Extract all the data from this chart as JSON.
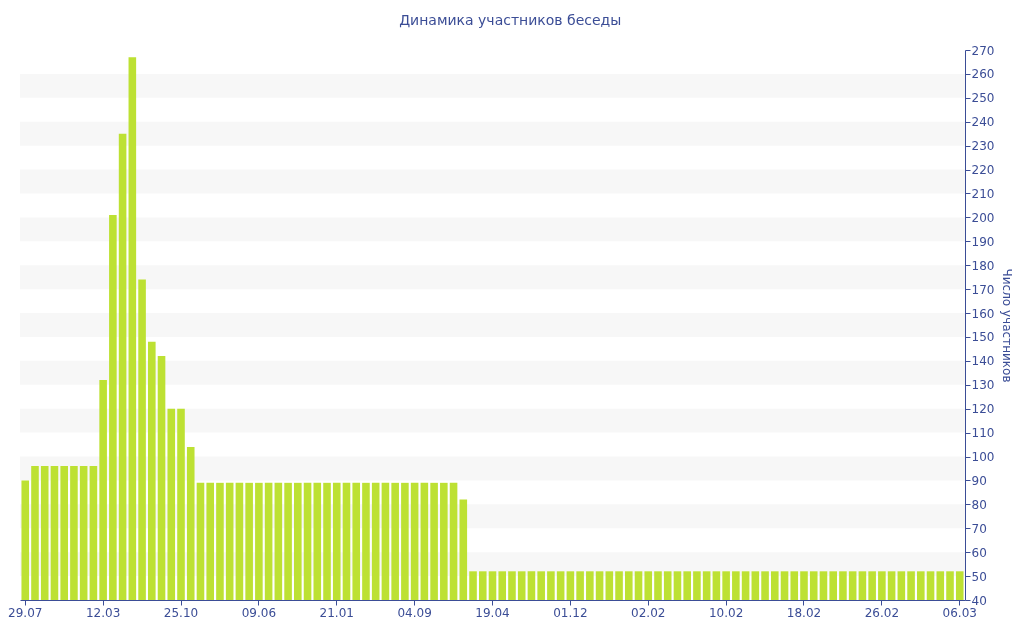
{
  "chart_data": {
    "type": "bar",
    "title": "Динамика участников беседы",
    "ylabel": "Число участников",
    "categories": [
      "29.07",
      null,
      null,
      null,
      null,
      null,
      null,
      null,
      "12.03",
      null,
      null,
      null,
      null,
      null,
      null,
      null,
      "25.10",
      null,
      null,
      null,
      null,
      null,
      null,
      null,
      "09.06",
      null,
      null,
      null,
      null,
      null,
      null,
      null,
      "21.01",
      null,
      null,
      null,
      null,
      null,
      null,
      null,
      "04.09",
      null,
      null,
      null,
      null,
      null,
      null,
      null,
      "19.04",
      null,
      null,
      null,
      null,
      null,
      null,
      null,
      "01.12",
      null,
      null,
      null,
      null,
      null,
      null,
      null,
      "02.02",
      null,
      null,
      null,
      null,
      null,
      null,
      null,
      "10.02",
      null,
      null,
      null,
      null,
      null,
      null,
      null,
      "18.02",
      null,
      null,
      null,
      null,
      null,
      null,
      null,
      "26.02",
      null,
      null,
      null,
      null,
      null,
      null,
      null,
      "06.03"
    ],
    "values": [
      90,
      96,
      96,
      96,
      96,
      96,
      96,
      96,
      132,
      201,
      235,
      267,
      174,
      148,
      142,
      120,
      120,
      104,
      89,
      89,
      89,
      89,
      89,
      89,
      89,
      89,
      89,
      89,
      89,
      89,
      89,
      89,
      89,
      89,
      89,
      89,
      89,
      89,
      89,
      89,
      89,
      89,
      89,
      89,
      89,
      82,
      52,
      52,
      52,
      52,
      52,
      52,
      52,
      52,
      52,
      52,
      52,
      52,
      52,
      52,
      52,
      52,
      52,
      52,
      52,
      52,
      52,
      52,
      52,
      52,
      52,
      52,
      52,
      52,
      52,
      52,
      52,
      52,
      52,
      52,
      52,
      52,
      52,
      52,
      52,
      52,
      52,
      52,
      52,
      52,
      52,
      52,
      52,
      52,
      52,
      52,
      52
    ],
    "color": "#bde133",
    "ylim": [
      40,
      270
    ],
    "yticks": [
      40,
      50,
      60,
      70,
      80,
      90,
      100,
      110,
      120,
      130,
      140,
      150,
      160,
      170,
      180,
      190,
      200,
      210,
      220,
      230,
      240,
      250,
      260,
      270
    ],
    "bands": [
      {
        "axis": "y",
        "from": 50,
        "to": 60,
        "color": "#f7f7f7"
      },
      {
        "axis": "y",
        "from": 70,
        "to": 80,
        "color": "#f7f7f7"
      },
      {
        "axis": "y",
        "from": 90,
        "to": 100,
        "color": "#f7f7f7"
      },
      {
        "axis": "y",
        "from": 110,
        "to": 120,
        "color": "#f7f7f7"
      },
      {
        "axis": "y",
        "from": 130,
        "to": 140,
        "color": "#f7f7f7"
      },
      {
        "axis": "y",
        "from": 150,
        "to": 160,
        "color": "#f7f7f7"
      },
      {
        "axis": "y",
        "from": 170,
        "to": 180,
        "color": "#f7f7f7"
      },
      {
        "axis": "y",
        "from": 190,
        "to": 200,
        "color": "#f7f7f7"
      },
      {
        "axis": "y",
        "from": 210,
        "to": 220,
        "color": "#f7f7f7"
      },
      {
        "axis": "y",
        "from": 230,
        "to": 240,
        "color": "#f7f7f7"
      },
      {
        "axis": "y",
        "from": 250,
        "to": 260,
        "color": "#f7f7f7"
      }
    ]
  }
}
